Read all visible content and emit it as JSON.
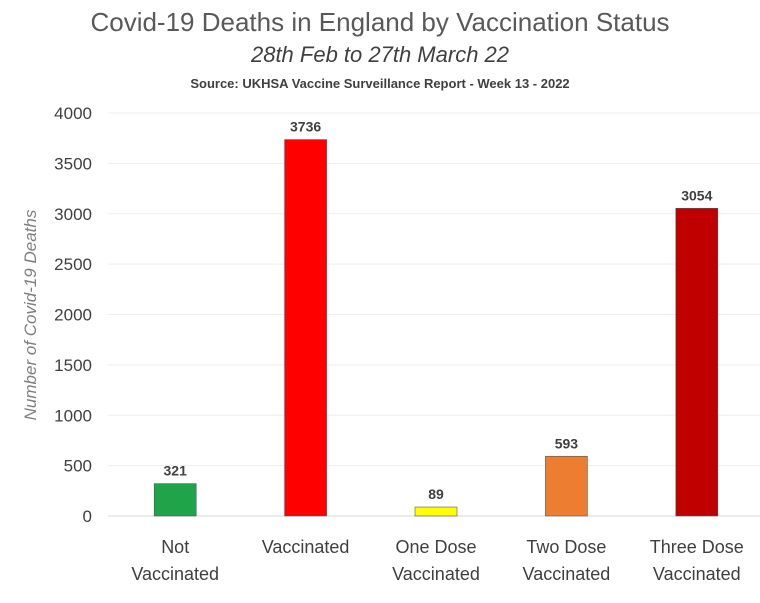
{
  "chart_data": {
    "type": "bar",
    "title": "Covid-19 Deaths in England by Vaccination Status",
    "subtitle": "28th Feb to 27th March 22",
    "source": "Source: UKHSA Vaccine Surveillance Report - Week 13 - 2022",
    "xlabel": "",
    "ylabel": "Number of Covid-19 Deaths",
    "ylim": [
      0,
      4000
    ],
    "yticks": [
      "0",
      "500",
      "1000",
      "1500",
      "2000",
      "2500",
      "3000",
      "3500",
      "4000"
    ],
    "grid": true,
    "categories": [
      [
        "Not",
        "Vaccinated"
      ],
      [
        "Vaccinated"
      ],
      [
        "One Dose",
        "Vaccinated"
      ],
      [
        "Two Dose",
        "Vaccinated"
      ],
      [
        "Three Dose",
        "Vaccinated"
      ]
    ],
    "values": [
      321,
      3736,
      89,
      593,
      3054
    ],
    "colors": [
      "#1fa44a",
      "#ff0000",
      "#ffff00",
      "#ed7d31",
      "#c00000"
    ]
  }
}
